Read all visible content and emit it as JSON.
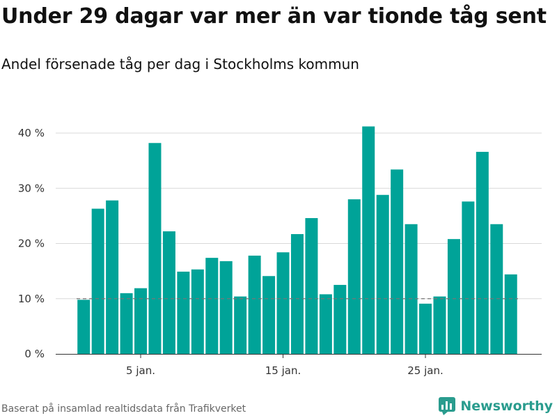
{
  "title": "Under 29 dagar var mer än var tionde tåg sent",
  "subtitle": "Andel försenade tåg per dag i Stockholms kommun",
  "source": "Baserat på insamlad realtidsdata från Trafikverket",
  "brand": "Newsworthy",
  "colors": {
    "bar": "#00a398",
    "grid": "#d9d9d9",
    "reference": "#777777",
    "brand": "#2a9c8e"
  },
  "chart_data": {
    "type": "bar",
    "x": [
      1,
      2,
      3,
      4,
      5,
      6,
      7,
      8,
      9,
      10,
      11,
      12,
      13,
      14,
      15,
      16,
      17,
      18,
      19,
      20,
      21,
      22,
      23,
      24,
      25,
      26,
      27,
      28,
      29,
      30,
      31
    ],
    "values": [
      9.8,
      26.3,
      27.8,
      11.0,
      11.9,
      38.2,
      22.2,
      14.9,
      15.3,
      17.4,
      16.8,
      10.4,
      17.8,
      14.1,
      18.4,
      21.7,
      24.6,
      10.8,
      12.5,
      28.0,
      41.2,
      28.8,
      33.4,
      23.5,
      9.1,
      10.4,
      20.8,
      27.6,
      36.6,
      23.5,
      14.4
    ],
    "xticks": [
      {
        "x": 5,
        "label": "5 jan."
      },
      {
        "x": 15,
        "label": "15 jan."
      },
      {
        "x": 25,
        "label": "25 jan."
      }
    ],
    "yticks": [
      {
        "value": 0,
        "label": "0 %"
      },
      {
        "value": 10,
        "label": "10 %"
      },
      {
        "value": 20,
        "label": "20 %"
      },
      {
        "value": 30,
        "label": "30 %"
      },
      {
        "value": 40,
        "label": "40 %"
      }
    ],
    "ylim": [
      0,
      40
    ],
    "reference_line": 10,
    "grid": true,
    "xlabel": "",
    "ylabel": ""
  }
}
